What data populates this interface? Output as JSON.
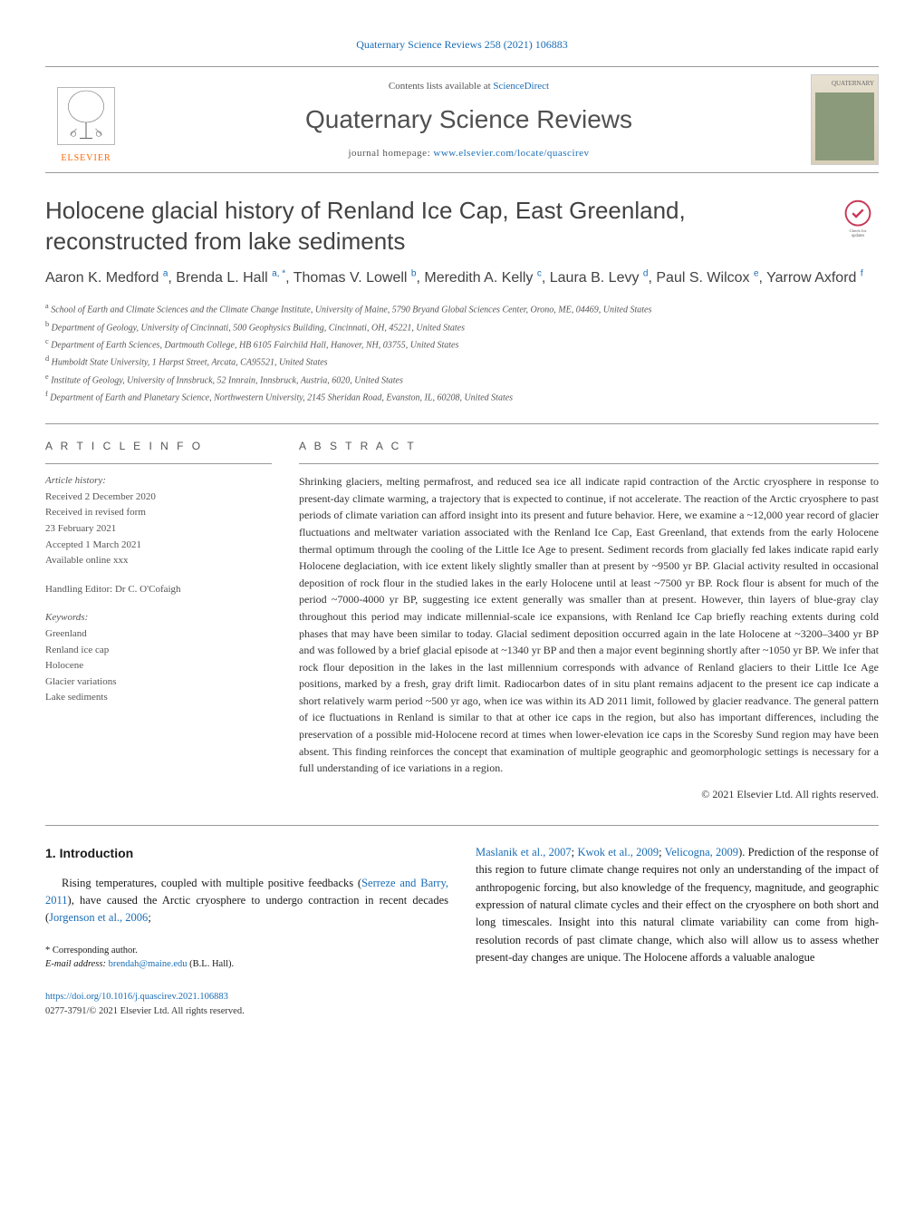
{
  "header_link": "Quaternary Science Reviews 258 (2021) 106883",
  "journal_bar": {
    "contents_text": "Contents lists available at ",
    "contents_link": "ScienceDirect",
    "journal_title": "Quaternary Science Reviews",
    "homepage_text": "journal homepage: ",
    "homepage_link": "www.elsevier.com/locate/quascirev",
    "elsevier_label": "ELSEVIER",
    "cover_label": "QUATERNARY"
  },
  "article": {
    "title": "Holocene glacial history of Renland Ice Cap, East Greenland, reconstructed from lake sediments",
    "authors_html": "Aaron K. Medford <sup>a</sup>, Brenda L. Hall <sup>a, *</sup>, Thomas V. Lowell <sup>b</sup>, Meredith A. Kelly <sup>c</sup>, Laura B. Levy <sup>d</sup>, Paul S. Wilcox <sup>e</sup>, Yarrow Axford <sup>f</sup>",
    "affiliations": [
      {
        "sup": "a",
        "text": "School of Earth and Climate Sciences and the Climate Change Institute, University of Maine, 5790 Bryand Global Sciences Center, Orono, ME, 04469, United States"
      },
      {
        "sup": "b",
        "text": "Department of Geology, University of Cincinnati, 500 Geophysics Building, Cincinnati, OH, 45221, United States"
      },
      {
        "sup": "c",
        "text": "Department of Earth Sciences, Dartmouth College, HB 6105 Fairchild Hall, Hanover, NH, 03755, United States"
      },
      {
        "sup": "d",
        "text": "Humboldt State University, 1 Harpst Street, Arcata, CA95521, United States"
      },
      {
        "sup": "e",
        "text": "Institute of Geology, University of Innsbruck, 52 Innrain, Innsbruck, Austria, 6020, United States"
      },
      {
        "sup": "f",
        "text": "Department of Earth and Planetary Science, Northwestern University, 2145 Sheridan Road, Evanston, IL, 60208, United States"
      }
    ]
  },
  "article_info": {
    "heading": "A R T I C L E  I N F O",
    "history_label": "Article history:",
    "history_lines": [
      "Received 2 December 2020",
      "Received in revised form",
      "23 February 2021",
      "Accepted 1 March 2021",
      "Available online xxx"
    ],
    "editor_line": "Handling Editor: Dr C. O'Cofaigh",
    "keywords_label": "Keywords:",
    "keywords": [
      "Greenland",
      "Renland ice cap",
      "Holocene",
      "Glacier variations",
      "Lake sediments"
    ]
  },
  "abstract": {
    "heading": "A B S T R A C T",
    "text": "Shrinking glaciers, melting permafrost, and reduced sea ice all indicate rapid contraction of the Arctic cryosphere in response to present-day climate warming, a trajectory that is expected to continue, if not accelerate. The reaction of the Arctic cryosphere to past periods of climate variation can afford insight into its present and future behavior. Here, we examine a ~12,000 year record of glacier fluctuations and meltwater variation associated with the Renland Ice Cap, East Greenland, that extends from the early Holocene thermal optimum through the cooling of the Little Ice Age to present. Sediment records from glacially fed lakes indicate rapid early Holocene deglaciation, with ice extent likely slightly smaller than at present by ~9500 yr BP. Glacial activity resulted in occasional deposition of rock flour in the studied lakes in the early Holocene until at least ~7500 yr BP. Rock flour is absent for much of the period ~7000-4000 yr BP, suggesting ice extent generally was smaller than at present. However, thin layers of blue-gray clay throughout this period may indicate millennial-scale ice expansions, with Renland Ice Cap briefly reaching extents during cold phases that may have been similar to today. Glacial sediment deposition occurred again in the late Holocene at ~3200–3400 yr BP and was followed by a brief glacial episode at ~1340 yr BP and then a major event beginning shortly after ~1050 yr BP. We infer that rock flour deposition in the lakes in the last millennium corresponds with advance of Renland glaciers to their Little Ice Age positions, marked by a fresh, gray drift limit. Radiocarbon dates of in situ plant remains adjacent to the present ice cap indicate a short relatively warm period ~500 yr ago, when ice was within its AD 2011 limit, followed by glacier readvance. The general pattern of ice fluctuations in Renland is similar to that at other ice caps in the region, but also has important differences, including the preservation of a possible mid-Holocene record at times when lower-elevation ice caps in the Scoresby Sund region may have been absent. This finding reinforces the concept that examination of multiple geographic and geomorphologic settings is necessary for a full understanding of ice variations in a region.",
    "copyright": "© 2021 Elsevier Ltd. All rights reserved."
  },
  "intro": {
    "heading": "1. Introduction",
    "left_para": "Rising temperatures, coupled with multiple positive feedbacks (",
    "left_ref1": "Serreze and Barry, 2011",
    "left_mid": "), have caused the Arctic cryosphere to undergo contraction in recent decades (",
    "left_ref2": "Jorgenson et al., 2006",
    "left_end": ";",
    "right_start": "",
    "right_ref1": "Maslanik et al., 2007",
    "right_sep1": "; ",
    "right_ref2": "Kwok et al., 2009",
    "right_sep2": "; ",
    "right_ref3": "Velicogna, 2009",
    "right_rest": "). Prediction of the response of this region to future climate change requires not only an understanding of the impact of anthropogenic forcing, but also knowledge of the frequency, magnitude, and geographic expression of natural climate cycles and their effect on the cryosphere on both short and long timescales. Insight into this natural climate variability can come from high-resolution records of past climate change, which also will allow us to assess whether present-day changes are unique. The Holocene affords a valuable analogue"
  },
  "footnote": {
    "corresponding": "* Corresponding author.",
    "email_label": "E-mail address: ",
    "email": "brendah@maine.edu",
    "email_suffix": " (B.L. Hall)."
  },
  "doi": {
    "link": "https://doi.org/10.1016/j.quascirev.2021.106883",
    "issn_line": "0277-3791/© 2021 Elsevier Ltd. All rights reserved."
  },
  "colors": {
    "link": "#1a6db5",
    "elsevier_orange": "#ff6600",
    "text_gray": "#555555",
    "heading_gray": "#424242"
  }
}
